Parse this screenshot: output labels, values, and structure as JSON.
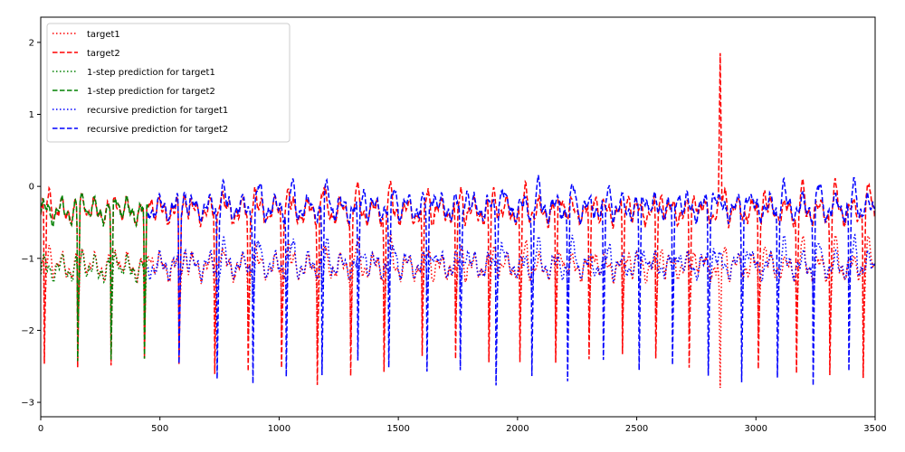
{
  "chart_data": {
    "type": "line",
    "title": "",
    "xlabel": "",
    "ylabel": "",
    "xlim": [
      0,
      3500
    ],
    "ylim": [
      -3.2,
      2.35
    ],
    "x_ticks": [
      0,
      500,
      1000,
      1500,
      2000,
      2500,
      3000,
      3500
    ],
    "y_ticks": [
      -3,
      -2,
      -1,
      0,
      1,
      2
    ],
    "grid": false,
    "legend_position": "top-left",
    "series": [
      {
        "name": "target1",
        "color": "#ff0000",
        "dash": "dotted",
        "x_range": [
          0,
          3500
        ],
        "baseline": -1.12,
        "spike_to": -2.1,
        "spike_xs": [
          15,
          155,
          295,
          435,
          580,
          730,
          870,
          1010,
          1160,
          1300,
          1440,
          1600,
          1740,
          1880,
          2010,
          2160,
          2300,
          2440,
          2580,
          2720,
          2845,
          3010,
          3170,
          3310,
          3450
        ],
        "extreme": {
          "x": 2850,
          "y": -2.8
        }
      },
      {
        "name": "target2",
        "color": "#ff0000",
        "dash": "dashed",
        "x_range": [
          0,
          3500
        ],
        "baseline": -0.35,
        "spike_to": -2.55,
        "spike_xs": [
          15,
          155,
          295,
          435,
          580,
          730,
          870,
          1010,
          1160,
          1300,
          1440,
          1600,
          1740,
          1880,
          2010,
          2160,
          2300,
          2440,
          2580,
          2720,
          2845,
          3010,
          3170,
          3310,
          3450
        ],
        "peak": {
          "x": 2850,
          "y": 1.85
        }
      },
      {
        "name": "1-step prediction for target1",
        "color": "#008000",
        "dash": "dotted",
        "x_range": [
          0,
          450
        ],
        "baseline": -1.15,
        "spike_to": -2.0,
        "spike_xs": [
          155,
          295,
          435
        ]
      },
      {
        "name": "1-step prediction for target2",
        "color": "#008000",
        "dash": "dashed",
        "x_range": [
          0,
          450
        ],
        "baseline": -0.35,
        "spike_to": -2.5,
        "spike_xs": [
          155,
          295,
          435
        ]
      },
      {
        "name": "recursive prediction for target1",
        "color": "#0000ff",
        "dash": "dotted",
        "x_range": [
          450,
          3500
        ],
        "baseline": -1.1,
        "spike_to": -1.45,
        "spike_xs": [
          580,
          740,
          890,
          1030,
          1180,
          1330,
          1460,
          1620,
          1760,
          1910,
          2060,
          2210,
          2360,
          2510,
          2650,
          2800,
          2940,
          3090,
          3240,
          3390
        ]
      },
      {
        "name": "recursive prediction for target2",
        "color": "#0000ff",
        "dash": "dashed",
        "x_range": [
          450,
          3500
        ],
        "baseline": -0.3,
        "spike_to": -2.6,
        "spike_xs": [
          580,
          740,
          890,
          1030,
          1180,
          1330,
          1460,
          1620,
          1760,
          1910,
          2060,
          2210,
          2360,
          2510,
          2650,
          2800,
          2940,
          3090,
          3240,
          3390
        ]
      }
    ]
  }
}
